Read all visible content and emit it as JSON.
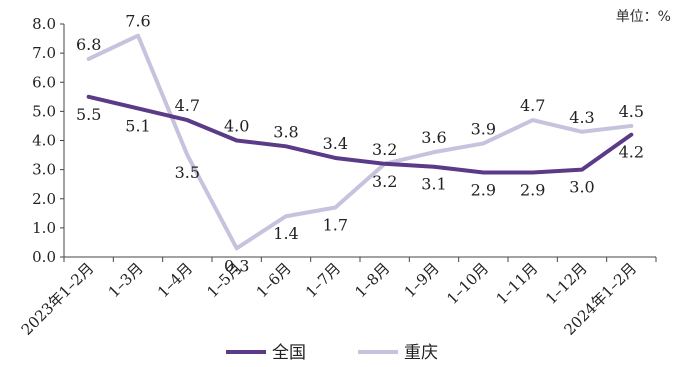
{
  "chart_data": {
    "type": "line",
    "unit_label": "单位：%",
    "categories": [
      "2023年1–2月",
      "1–3月",
      "1–4月",
      "1–5月",
      "1–6月",
      "1–7月",
      "1–8月",
      "1–9月",
      "1–10月",
      "1–11月",
      "1–12月",
      "2024年1–2月"
    ],
    "ylim": [
      0,
      8.0
    ],
    "yticks": [
      "0.0",
      "1.0",
      "2.0",
      "3.0",
      "4.0",
      "5.0",
      "6.0",
      "7.0",
      "8.0"
    ],
    "grid": false,
    "legend_position": "bottom-center",
    "series": [
      {
        "name": "全国",
        "color": "#5b3a87",
        "values": [
          5.5,
          5.1,
          4.7,
          4.0,
          3.8,
          3.4,
          3.2,
          3.1,
          2.9,
          2.9,
          3.0,
          4.2
        ],
        "labels": [
          "5.5",
          "5.1",
          "4.7",
          "4.0",
          "3.8",
          "3.4",
          "3.2",
          "3.1",
          "2.9",
          "2.9",
          "3.0",
          "4.2"
        ]
      },
      {
        "name": "重庆",
        "color": "#c5c3de",
        "values": [
          6.8,
          7.6,
          3.5,
          0.3,
          1.4,
          1.7,
          3.2,
          3.6,
          3.9,
          4.7,
          4.3,
          4.5
        ],
        "labels": [
          "6.8",
          "7.6",
          "3.5",
          "0.3",
          "1.4",
          "1.7",
          "3.2",
          "3.6",
          "3.9",
          "4.7",
          "4.3",
          "4.5"
        ]
      }
    ]
  }
}
